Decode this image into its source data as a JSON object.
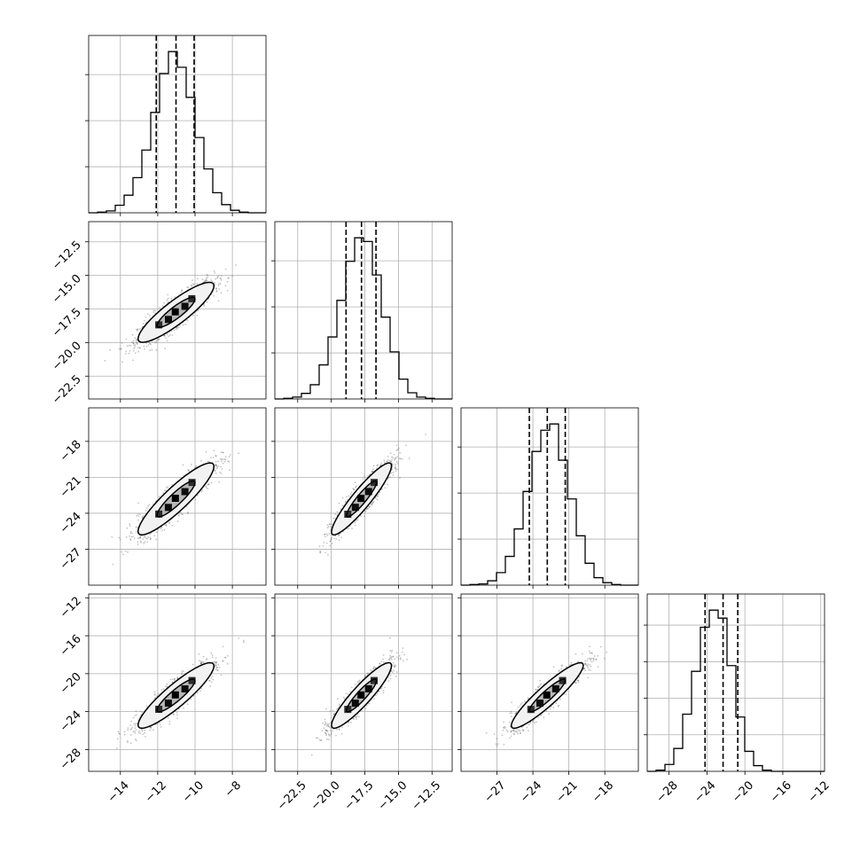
{
  "chart_data": {
    "type": "corner",
    "title": "",
    "grid": true,
    "colors": {
      "line": "#000000",
      "scatter": "#555555",
      "grid": "#b0b0b0",
      "density_dark": "#000000",
      "density_light": "#ffffff"
    },
    "parameters": [
      {
        "label": "",
        "range": [
          -15.7,
          -6.2
        ],
        "ticks": [
          -14,
          -12,
          -10,
          -8
        ],
        "tick_labels": [
          "−14",
          "−12",
          "−10",
          "−8"
        ],
        "hist_ticks_count": 3,
        "quantiles": [
          -12.08,
          -11.02,
          -10.05
        ],
        "hist_edges": [
          -15.7,
          -15.225,
          -14.75,
          -14.275,
          -13.8,
          -13.325,
          -12.85,
          -12.375,
          -11.9,
          -11.425,
          -10.95,
          -10.475,
          -10.0,
          -9.525,
          -9.05,
          -8.575,
          -8.1,
          -7.625,
          -7.15,
          -6.675,
          -6.2
        ],
        "hist_counts": [
          0,
          1,
          3,
          12,
          28,
          56,
          100,
          160,
          222,
          257,
          232,
          184,
          120,
          70,
          32,
          13,
          4,
          1,
          0,
          0
        ]
      },
      {
        "label": "",
        "range": [
          -24.2,
          -11.0
        ],
        "ticks": [
          -22.5,
          -20.0,
          -17.5,
          -15.0,
          -12.5
        ],
        "tick_labels": [
          "−22.5",
          "−20.0",
          "−17.5",
          "−15.0",
          "−12.5"
        ],
        "hist_ticks_count": 3,
        "quantiles": [
          -18.9,
          -17.75,
          -16.67
        ],
        "hist_edges": [
          -24.2,
          -23.54,
          -22.88,
          -22.22,
          -21.56,
          -20.9,
          -20.24,
          -19.58,
          -18.92,
          -18.26,
          -17.6,
          -16.94,
          -16.28,
          -15.62,
          -14.96,
          -14.3,
          -13.64,
          -12.98,
          -12.32,
          -11.66,
          -11.0
        ],
        "hist_counts": [
          0,
          1,
          3,
          9,
          23,
          55,
          100,
          159,
          222,
          260,
          254,
          200,
          132,
          76,
          32,
          10,
          3,
          1,
          0,
          0
        ]
      },
      {
        "label": "",
        "range": [
          -30.0,
          -15.2
        ],
        "ticks": [
          -27,
          -24,
          -21,
          -18
        ],
        "tick_labels": [
          "−27",
          "−24",
          "−21",
          "−18"
        ],
        "hist_ticks_count": 3,
        "quantiles": [
          -24.3,
          -22.8,
          -21.3
        ],
        "hist_edges": [
          -30.0,
          -29.26,
          -28.52,
          -27.78,
          -27.04,
          -26.3,
          -25.56,
          -24.82,
          -24.08,
          -23.34,
          -22.6,
          -21.86,
          -21.12,
          -20.38,
          -19.64,
          -18.9,
          -18.16,
          -17.42,
          -16.68,
          -15.94,
          -15.2
        ],
        "hist_counts": [
          0,
          1,
          2,
          7,
          20,
          46,
          90,
          150,
          214,
          248,
          258,
          200,
          138,
          79,
          35,
          12,
          4,
          1,
          0,
          0
        ]
      },
      {
        "label": "",
        "range": [
          -30.3,
          -11.6
        ],
        "ticks": [
          -28,
          -24,
          -20,
          -16,
          -12
        ],
        "tick_labels": [
          "−28",
          "−24",
          "−20",
          "−16",
          "−12"
        ],
        "hist_ticks_count": 4,
        "quantiles": [
          -24.2,
          -22.3,
          -20.75
        ],
        "hist_edges": [
          -30.3,
          -29.365,
          -28.43,
          -27.495,
          -26.56,
          -25.625,
          -24.69,
          -23.755,
          -22.82,
          -21.885,
          -20.95,
          -20.015,
          -19.08,
          -18.145,
          -17.21,
          -16.275,
          -15.34,
          -14.405,
          -13.47,
          -12.535,
          -11.6
        ],
        "hist_counts": [
          0,
          2,
          12,
          40,
          100,
          175,
          252,
          282,
          268,
          185,
          95,
          35,
          10,
          2,
          0,
          0,
          0,
          0,
          0,
          0
        ]
      }
    ],
    "correlations": [
      [
        1.0,
        0.88,
        0.9,
        0.9
      ],
      [
        0.88,
        1.0,
        0.92,
        0.91
      ],
      [
        0.9,
        0.92,
        1.0,
        0.92
      ],
      [
        0.9,
        0.91,
        0.92,
        1.0
      ]
    ],
    "contour_levels": [
      0.393,
      0.865
    ],
    "scatter_points_per_panel": 1400
  }
}
